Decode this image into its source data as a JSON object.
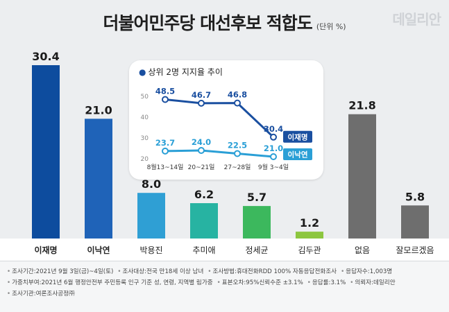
{
  "header": {
    "title": "더불어민주당 대선후보 적합도",
    "unit": "(단위 %)",
    "logo": "데일리안"
  },
  "chart_data": [
    {
      "type": "bar",
      "categories": [
        "이재명",
        "이낙연",
        "박용진",
        "추미애",
        "정세균",
        "김두관",
        "없음",
        "잘모르겠음"
      ],
      "values": [
        30.4,
        21.0,
        8.0,
        6.2,
        5.7,
        1.2,
        21.8,
        5.8
      ],
      "value_labels": [
        "30.4",
        "21.0",
        "8.0",
        "6.2",
        "5.7",
        "1.2",
        "21.8",
        "5.8"
      ],
      "colors": [
        "#0d4c9e",
        "#1f63b8",
        "#2f9fd4",
        "#27b3a2",
        "#3cb85d",
        "#8cc63f",
        "#6e6e6e",
        "#6e6e6e"
      ],
      "bold_categories": [
        "이재명",
        "이낙연"
      ],
      "title": "더불어민주당 대선후보 적합도",
      "ylim": [
        0,
        32
      ]
    },
    {
      "type": "line",
      "title": "상위 2명 지지율 추이",
      "x": [
        "8월13~14일",
        "20~21일",
        "27~28일",
        "9월 3~4일"
      ],
      "yticks": [
        "50",
        "40",
        "30",
        "20"
      ],
      "ylim": [
        20,
        50
      ],
      "series": [
        {
          "name": "이재명",
          "values": [
            48.5,
            46.7,
            46.8,
            30.4
          ],
          "labels": [
            "48.5",
            "46.7",
            "46.8",
            "30.4"
          ],
          "color": "#1a4fa0"
        },
        {
          "name": "이낙연",
          "values": [
            23.7,
            24.0,
            22.5,
            21.0
          ],
          "labels": [
            "23.7",
            "24.0",
            "22.5",
            "21.0"
          ],
          "color": "#2a9fd6"
        }
      ]
    }
  ],
  "footer": {
    "lines": [
      [
        "조사기간:2021년 9월 3일(금)~4일(토)",
        "조사대상:전국 만18세 이상 남녀",
        "조사방법:휴대전화RDD 100% 자동응답전화조사",
        "응답자수:1,003명"
      ],
      [
        "가중치부여:2021년 6월 행정안전부 주민등록 인구 기준 성, 연령, 지역별 림가중",
        "표본오차:95%신뢰수준 ±3.1%",
        "응답률:3.1%",
        "의뢰자:데일리안"
      ],
      [
        "조사기관:여론조사공정㈜"
      ]
    ]
  }
}
